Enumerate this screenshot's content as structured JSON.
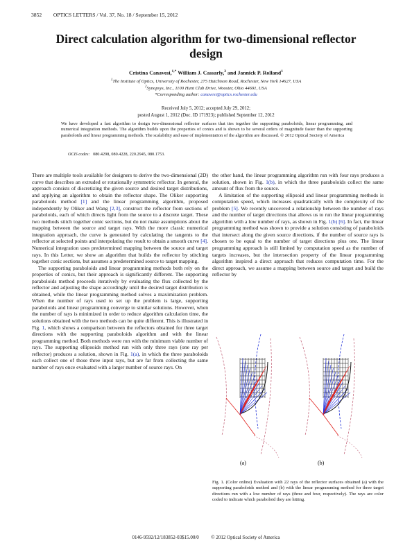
{
  "header": {
    "page_number": "3852",
    "journal": "OPTICS LETTERS / Vol. 37, No. 18 / September 15, 2012"
  },
  "title": "Direct calculation algorithm for two-dimensional reflector design",
  "authors": {
    "a1_name": "Cristina Canavesi,",
    "a1_sup": "1,*",
    "a2_name": " William J. Cassarly,",
    "a2_sup": "2",
    "a3_name": " and Jannick P. Rolland",
    "a3_sup": "1"
  },
  "affiliations": {
    "aff1_sup": "1",
    "aff1": "The Institute of Optics, University of Rochester, 275 Hutchison Road, Rochester, New York 14627, USA",
    "aff2_sup": "2",
    "aff2": "Synopsys, Inc., 1100 Hunt Club Drive, Wooster, Ohio 44691, USA",
    "corr_label": "*Corresponding author: ",
    "corr_email": "canavesi@optics.rochester.edu"
  },
  "received": {
    "line1": "Received July 5, 2012; accepted July 29, 2012;",
    "line2": "posted August 1, 2012 (Doc. ID 171923); published September 12, 2012"
  },
  "abstract": "We have developed a fast algorithm to design two-dimensional reflector surfaces that ties together the supporting paraboloids, linear programming, and numerical integration methods. The algorithm builds upon the properties of conics and is shown to be several orders of magnitude faster than the supporting paraboloids and linear programming methods. The scalability and ease of implementation of the algorithm are discussed.   © 2012 Optical Society of America",
  "ocis": {
    "label": "OCIS codes:",
    "codes": "080.4298, 080.4228, 220.2945, 080.1753."
  },
  "left_column": {
    "p1": {
      "t1": "There are multiple tools available for designers to derive the two-dimensional (2D) curve that describes an extruded or rotationally symmetric reflector. In general, the approach consists of discretizing the given source and desired target distributions, and applying an algorithm to obtain the reflector shape. The Oliker supporting paraboloids method ",
      "r1": "[1]",
      "t2": " and the linear programming algorithm, proposed independently by Oliker and Wang ",
      "r2": "[2,3]",
      "t3": ", construct the reflector from sections of paraboloids, each of which directs light from the source to a discrete target. These two methods stitch together conic sections, but do not make assumptions about the mapping between the source and target rays. With the more classic numerical integration approach, the curve is generated by calculating the tangents to the reflector at selected points and interpolating the result to obtain a smooth curve ",
      "r3": "[4]",
      "t4": ". Numerical integration uses predetermined mapping between the source and target rays. In this Letter, we show an algorithm that builds the reflector by stitching together conic sections, but assumes a predetermined source to target mapping."
    },
    "p2": {
      "t1": "The supporting paraboloids and linear programming methods both rely on the properties of conics, but their approach is significantly different. The supporting paraboloids method proceeds iteratively by evaluating the flux collected by the reflector and adjusting the shape accordingly until the desired target distribution is obtained, while the linear programming method solves a maximization problem. When the number of rays used to set up the problem is large, supporting paraboloids and linear programming converge to similar solutions. However, when the number of rays is minimized in order to reduce algorithm calculation time, the solutions obtained with the two methods can be quite different. This is illustrated in Fig. ",
      "r1": "1",
      "t2": ", which shows a comparison between the reflectors obtained for three target directions with the supporting paraboloids algorithm and with the linear programming method. Both methods were run with the minimum viable number of rays. The supporting ellipsoids method run with only three rays (one ray per reflector) produces a solution, shown in Fig. ",
      "r2": "1(a)",
      "t3": ", in which the three paraboloids each collect one of those three input rays, but are far from collecting the same number of rays once evaluated with a larger number of source rays. On"
    }
  },
  "right_column": {
    "p1": {
      "t1": "the other hand, the linear programming algorithm run with four rays produces a solution, shown in Fig. ",
      "r1": "1(b)",
      "t2": ", in which the three paraboloids collect the same amount of flux from the source."
    },
    "p2": {
      "t1": "A limitation of the supporting ellipsoid and linear programming methods is computation speed, which increases quadratically with the complexity of the problem ",
      "r1": "[5]",
      "t2": ". We recently uncovered a relationship between the number of rays and the number of target directions that allows us to run the linear programming algorithm with a low number of rays, as shown in Fig. ",
      "r2": "1(b)",
      "t3": " ",
      "r3": "[6]",
      "t4": ". In fact, the linear programming method was shown to provide a solution consisting of paraboloids that intersect along the given source directions, if the number of source rays is chosen to be equal to the number of target directions plus one. The linear programming approach is still limited by computation speed as the number of targets increases, but the intersection property of the linear programming algorithm inspired a direct approach that reduces computation time. For the direct approach, we assume a mapping between source and target and build the reflector by"
    }
  },
  "figure": {
    "label_a": "(a)",
    "label_b": "(b)",
    "colors": {
      "red_rays": "#e0201c",
      "blue_rays": "#1f2fd8",
      "dashed_curve": "#c66c80",
      "black_mesh": "#111111"
    }
  },
  "caption": "Fig. 1.    (Color online) Evaluation with 22 rays of the reflector surfaces obtained (a) with the supporting paraboloids method and (b) with the linear programming method for three target directions run with a low number of rays (three and four, respectively). The rays are color coded to indicate which paraboloid they are hitting.",
  "footer": "0146-9592/12/183852-03$15.00/0          © 2012 Optical Society of America"
}
